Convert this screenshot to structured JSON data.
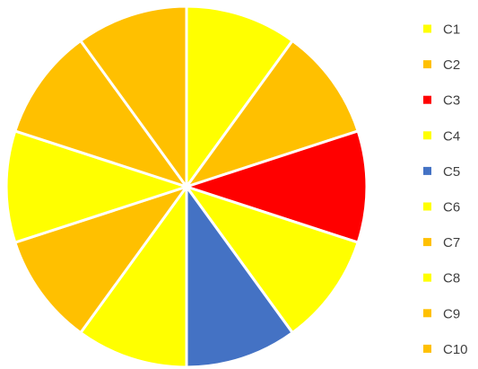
{
  "chart_data": {
    "type": "pie",
    "categories": [
      "C1",
      "C2",
      "C3",
      "C4",
      "C5",
      "C6",
      "C7",
      "C8",
      "C9",
      "C10"
    ],
    "values": [
      10,
      10,
      10,
      10,
      10,
      10,
      10,
      10,
      10,
      10
    ],
    "colors": [
      "#FFFF00",
      "#FFC000",
      "#FF0000",
      "#FFFF00",
      "#4472C4",
      "#FFFF00",
      "#FFC000",
      "#FFFF00",
      "#FFC000",
      "#FFC000"
    ],
    "legend_position": "right",
    "slice_border_color": "#FFFFFF"
  }
}
